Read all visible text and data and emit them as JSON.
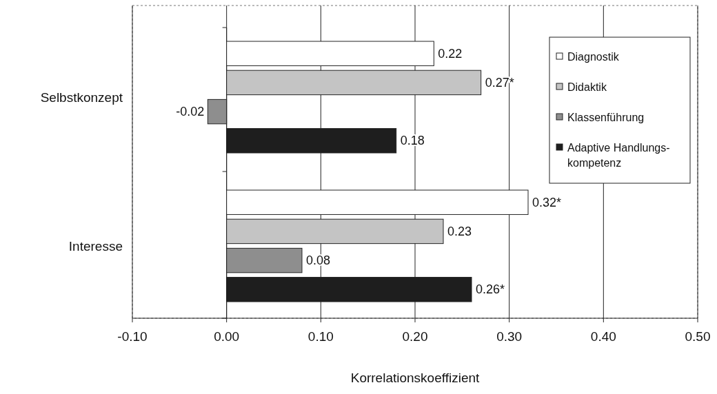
{
  "chart_data": {
    "type": "bar",
    "orientation": "horizontal",
    "xlabel": "Korrelationskoeffizient",
    "categories": [
      "Selbstkonzept",
      "Interesse"
    ],
    "series": [
      {
        "name": "Diagnostik",
        "color": "#ffffff",
        "values": [
          0.22,
          0.32
        ],
        "value_labels": [
          "0.22",
          "0.32*"
        ]
      },
      {
        "name": "Didaktik",
        "color": "#c4c4c4",
        "values": [
          0.27,
          0.23
        ],
        "value_labels": [
          "0.27*",
          "0.23"
        ]
      },
      {
        "name": "Klassenführung",
        "color": "#8e8e8e",
        "values": [
          -0.02,
          0.08
        ],
        "value_labels": [
          "-0.02",
          "0.08"
        ]
      },
      {
        "name": "Adaptive Handlungs-\nkompetenz",
        "color": "#1e1e1e",
        "values": [
          0.18,
          0.26
        ],
        "value_labels": [
          "0.18",
          "0.26*"
        ]
      }
    ],
    "xlim": [
      -0.1,
      0.5
    ],
    "xticks": [
      {
        "value": -0.1,
        "label": "-0.10"
      },
      {
        "value": 0,
        "label": "0.00"
      },
      {
        "value": 0.1,
        "label": "0.10"
      },
      {
        "value": 0.2,
        "label": "0.20"
      },
      {
        "value": 0.3,
        "label": "0.30"
      },
      {
        "value": 0.4,
        "label": "0.40"
      },
      {
        "value": 0.5,
        "label": "0.50"
      }
    ],
    "grid": "x",
    "legend": "top right"
  }
}
